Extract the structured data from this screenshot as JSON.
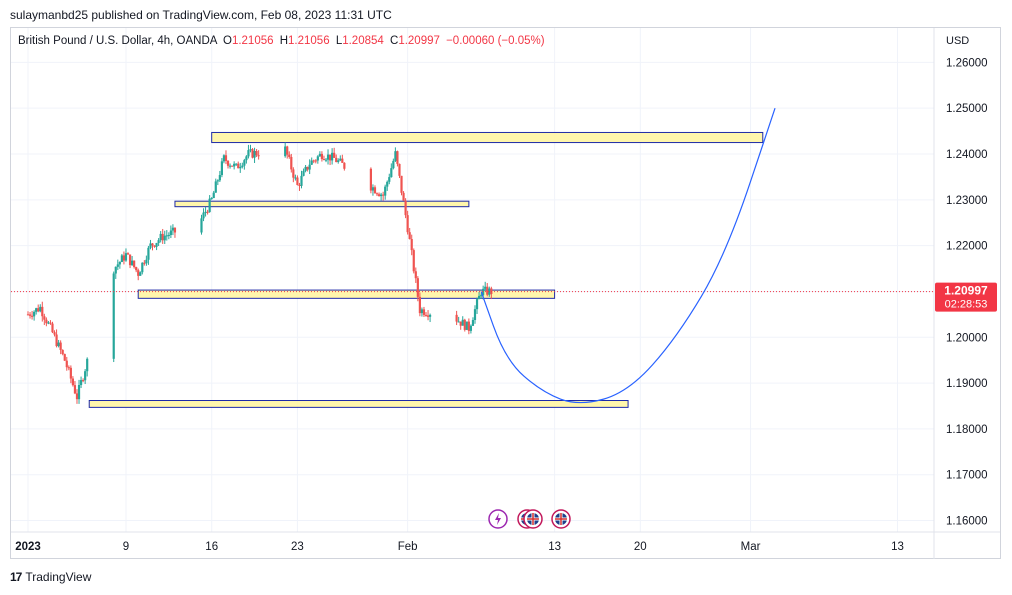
{
  "publisher_line": "sulaymanbd25 published on TradingView.com, Feb 08, 2023 11:31 UTC",
  "legend": {
    "symbol": "British Pound / U.S. Dollar, 4h, OANDA",
    "o_label": "O",
    "o_value": "1.21056",
    "h_label": "H",
    "h_value": "1.21056",
    "l_label": "L",
    "l_value": "1.20854",
    "c_label": "C",
    "c_value": "1.20997",
    "change": "−0.00060 (−0.05%)"
  },
  "footer": {
    "brand": "TradingView",
    "logo_icon": "tradingview-logo-icon"
  },
  "colors": {
    "up": "#26a69a",
    "down": "#ef5350",
    "zone_fill": "#fff59d",
    "zone_border": "#1e2aa8",
    "projection": "#2962ff",
    "price_tag": "#f23645",
    "grid": "#f0f3fa"
  },
  "events": [
    "lightning-event-icon",
    "uk-flag-icon",
    "uk-flag-icon",
    "uk-flag-icon"
  ],
  "chart_data": {
    "type": "candlestick",
    "instrument": "British Pound / U.S. Dollar",
    "interval": "4h",
    "currency": "USD",
    "y_ticks": [
      "1.26000",
      "1.25000",
      "1.24000",
      "1.23000",
      "1.22000",
      "1.21000",
      "1.20000",
      "1.19000",
      "1.18000",
      "1.17000",
      "1.16000"
    ],
    "ylim": [
      1.1575,
      1.2675
    ],
    "x_ticks": [
      "2023",
      "9",
      "16",
      "23",
      "Feb",
      "13",
      "20",
      "Mar",
      "13"
    ],
    "last_price": "1.20997",
    "countdown": "02:28:53",
    "price_path": [
      [
        "2023-01-02",
        1.205
      ],
      [
        "2023-01-03",
        1.2065
      ],
      [
        "2023-01-04",
        1.201
      ],
      [
        "2023-01-05",
        1.195
      ],
      [
        "2023-01-06",
        1.187
      ],
      [
        "2023-01-09",
        1.215
      ],
      [
        "2023-01-10",
        1.218
      ],
      [
        "2023-01-11",
        1.214
      ],
      [
        "2023-01-12",
        1.22
      ],
      [
        "2023-01-13",
        1.222
      ],
      [
        "2023-01-16",
        1.225
      ],
      [
        "2023-01-17",
        1.23
      ],
      [
        "2023-01-18",
        1.239
      ],
      [
        "2023-01-19",
        1.237
      ],
      [
        "2023-01-20",
        1.24
      ],
      [
        "2023-01-23",
        1.241
      ],
      [
        "2023-01-24",
        1.233
      ],
      [
        "2023-01-25",
        1.238
      ],
      [
        "2023-01-26",
        1.24
      ],
      [
        "2023-01-27",
        1.239
      ],
      [
        "2023-01-30",
        1.233
      ],
      [
        "2023-01-31",
        1.231
      ],
      [
        "2023-02-01",
        1.24
      ],
      [
        "2023-02-02",
        1.224
      ],
      [
        "2023-02-03",
        1.206
      ],
      [
        "2023-02-06",
        1.204
      ],
      [
        "2023-02-07",
        1.202
      ],
      [
        "2023-02-08",
        1.21
      ]
    ],
    "zones": [
      {
        "from": "2023-01-17",
        "to": "2023-03-03",
        "low": 1.2425,
        "high": 1.2447
      },
      {
        "from": "2023-01-14",
        "to": "2023-02-07",
        "low": 1.2285,
        "high": 1.2297
      },
      {
        "from": "2023-01-11",
        "to": "2023-02-14",
        "low": 1.2085,
        "high": 1.2103
      },
      {
        "from": "2023-01-07",
        "to": "2023-02-20",
        "low": 1.1847,
        "high": 1.1862
      }
    ],
    "projection": [
      [
        "2023-02-08",
        1.21
      ],
      [
        "2023-02-10",
        1.195
      ],
      [
        "2023-02-13",
        1.188
      ],
      [
        "2023-02-16",
        1.185
      ],
      [
        "2023-02-20",
        1.188
      ],
      [
        "2023-02-24",
        1.2
      ],
      [
        "2023-02-28",
        1.218
      ],
      [
        "2023-03-04",
        1.25
      ]
    ]
  }
}
